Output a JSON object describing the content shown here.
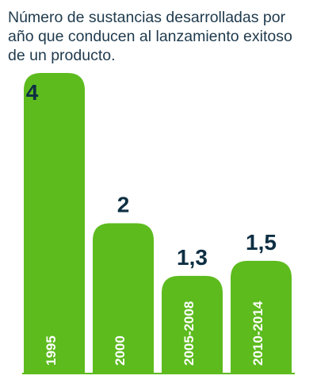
{
  "title": "Número de sustancias desarrolladas por año que conducen al lanzamiento exitoso de un producto.",
  "colors": {
    "bar": "#5dbb1e",
    "value_text": "#0e2f43",
    "title_text": "#1f3a4d",
    "category_text": "#ffffff"
  },
  "chart_data": {
    "type": "bar",
    "title": "Número de sustancias desarrolladas por año que conducen al lanzamiento exitoso de un producto.",
    "categories": [
      "1995",
      "2000",
      "2005-2008",
      "2010-2014"
    ],
    "values": [
      4,
      2,
      1.3,
      1.5
    ],
    "value_labels": [
      "4",
      "2",
      "1,3",
      "1,5"
    ],
    "xlabel": "",
    "ylabel": "",
    "ylim": [
      0,
      4
    ],
    "grid": false,
    "legend": "none"
  }
}
